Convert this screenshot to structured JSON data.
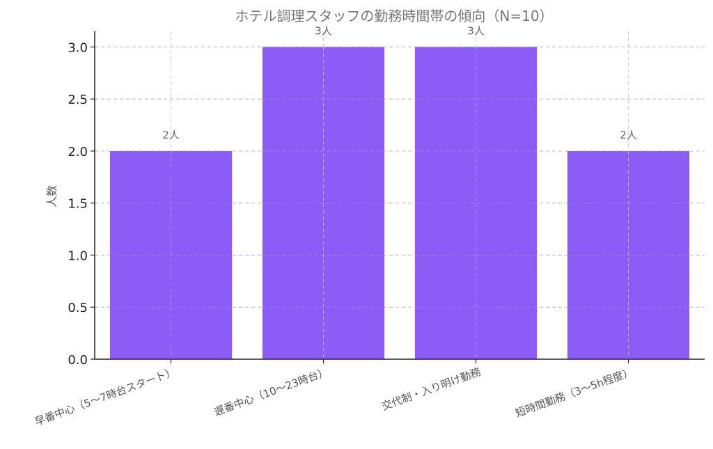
{
  "chart_data": {
    "type": "bar",
    "title": "ホテル調理スタッフの勤務時間帯の傾向（N=10）",
    "xlabel": "",
    "ylabel": "人数",
    "categories": [
      "早番中心（5〜7時台スタート）",
      "遅番中心（10〜23時台）",
      "交代制・入り明け勤務",
      "短時間勤務（3〜5h程度）"
    ],
    "values": [
      2,
      3,
      3,
      2
    ],
    "data_labels": [
      "2人",
      "3人",
      "3人",
      "2人"
    ],
    "ylim": [
      0,
      3.15
    ],
    "yticks": [
      "0.0",
      "0.5",
      "1.0",
      "1.5",
      "2.0",
      "2.5",
      "3.0"
    ],
    "grid": true,
    "bar_color": "#8b5cf6"
  }
}
